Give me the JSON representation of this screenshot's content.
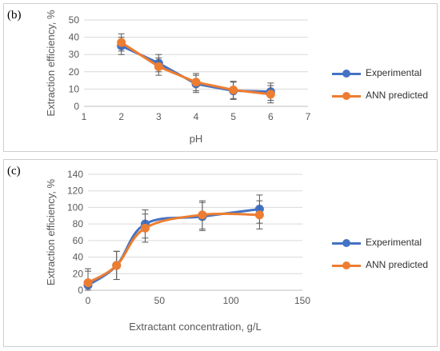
{
  "colors": {
    "experimental": "#4472C4",
    "ann": "#ED7D31",
    "axis": "#bfbfbf",
    "grid": "#d9d9d9",
    "error": "#595959",
    "text": "#595959"
  },
  "chart_data": [
    {
      "panel_label": "(b)",
      "type": "line",
      "xlabel": "pH",
      "ylabel": "Extraction efficiency, %",
      "xlim": [
        1,
        7
      ],
      "ylim": [
        0,
        50
      ],
      "xticks": [
        1,
        2,
        3,
        4,
        5,
        6,
        7
      ],
      "yticks": [
        0,
        10,
        20,
        30,
        40,
        50
      ],
      "grid": "horizontal",
      "legend_position": "right",
      "smooth": false,
      "series": [
        {
          "name": "Experimental",
          "color_key": "experimental",
          "x": [
            2,
            3,
            4,
            5,
            6
          ],
          "y": [
            35,
            25,
            13,
            9,
            8.5
          ],
          "err": [
            5,
            5,
            5,
            5,
            5
          ]
        },
        {
          "name": "ANN predicted",
          "color_key": "ann",
          "x": [
            2,
            3,
            4,
            5,
            6
          ],
          "y": [
            37,
            23,
            14,
            9.5,
            7
          ],
          "err": [
            5,
            5,
            5,
            5,
            5
          ]
        }
      ]
    },
    {
      "panel_label": "(c)",
      "type": "line",
      "xlabel": "Extractant concentration, g/L",
      "ylabel": "Extraction efficiency, %",
      "xlim": [
        0,
        150
      ],
      "ylim": [
        0,
        140
      ],
      "xticks": [
        0,
        50,
        100,
        150
      ],
      "yticks": [
        0,
        20,
        40,
        60,
        80,
        100,
        120,
        140
      ],
      "grid": "horizontal",
      "legend_position": "right",
      "smooth": true,
      "series": [
        {
          "name": "Experimental",
          "color_key": "experimental",
          "x": [
            0,
            20,
            40,
            80,
            120
          ],
          "y": [
            6,
            30,
            80,
            89,
            98
          ],
          "err": [
            17,
            17,
            17,
            17,
            17
          ]
        },
        {
          "name": "ANN predicted",
          "color_key": "ann",
          "x": [
            0,
            20,
            40,
            80,
            120
          ],
          "y": [
            9,
            30,
            75,
            91,
            91
          ],
          "err": [
            17,
            17,
            17,
            17,
            17
          ]
        }
      ]
    }
  ]
}
